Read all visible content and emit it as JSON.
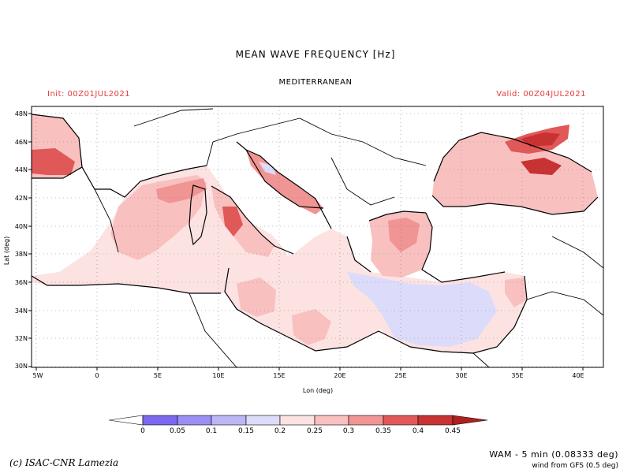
{
  "header": {
    "title": "MEAN WAVE FREQUENCY [Hz]",
    "region": "MEDITERRANEAN",
    "init": "Init: 00Z01JUL2021",
    "valid": "Valid: 00Z04JUL2021"
  },
  "axes": {
    "xlabel": "Lon (deg)",
    "ylabel": "Lat (deg)",
    "xticks": [
      "5W",
      "0",
      "5E",
      "10E",
      "15E",
      "20E",
      "25E",
      "30E",
      "35E",
      "40E"
    ],
    "yticks": [
      "30N",
      "32N",
      "34N",
      "36N",
      "38N",
      "40N",
      "42N",
      "44N",
      "46N",
      "48N"
    ]
  },
  "legend": {
    "labels": [
      "0",
      "0.05",
      "0.1",
      "0.15",
      "0.2",
      "0.25",
      "0.3",
      "0.35",
      "0.4",
      "0.45"
    ],
    "colors": [
      "#ffffff",
      "#7b68ee",
      "#9a8ff2",
      "#bdb6f5",
      "#dcdcfa",
      "#fde2e2",
      "#f9c0c0",
      "#f09494",
      "#e05858",
      "#c83232",
      "#b02020"
    ]
  },
  "footer": {
    "credit": "(c) ISAC-CNR Lamezia",
    "model": "WAM - 5 min (0.08333 deg)",
    "wind": "wind from GFS (0.5 deg)"
  },
  "colors": {
    "annotation_red": "#e53a3a",
    "grid": "#808080"
  }
}
